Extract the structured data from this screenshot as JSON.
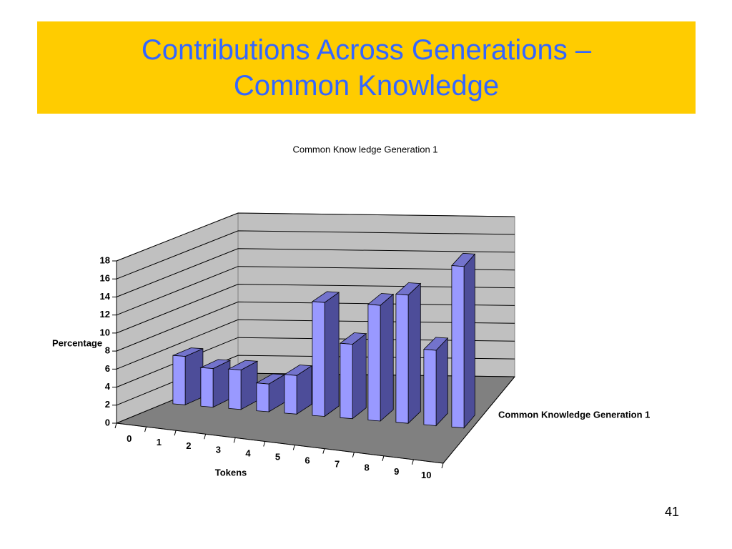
{
  "slide": {
    "title_lines": [
      "Contributions Across Generations –",
      "Common Knowledge"
    ],
    "page_number": "41"
  },
  "chart_data": {
    "type": "bar3d",
    "title": "Common Know ledge Generation 1",
    "x_label": "Tokens",
    "y_label": "Percentage",
    "categories": [
      "0",
      "1",
      "2",
      "3",
      "4",
      "5",
      "6",
      "7",
      "8",
      "9",
      "10"
    ],
    "series": [
      {
        "name": "Common Knowledge Generation 1",
        "color": "#9999ff",
        "values": [
          5.4,
          4.3,
          4.4,
          3.1,
          4.3,
          12.7,
          8.3,
          12.9,
          14.3,
          8.4,
          18.0
        ]
      }
    ],
    "ylim": [
      0,
      18
    ],
    "yticks": [
      0,
      2,
      4,
      6,
      8,
      10,
      12,
      14,
      16,
      18
    ],
    "grid": true
  }
}
